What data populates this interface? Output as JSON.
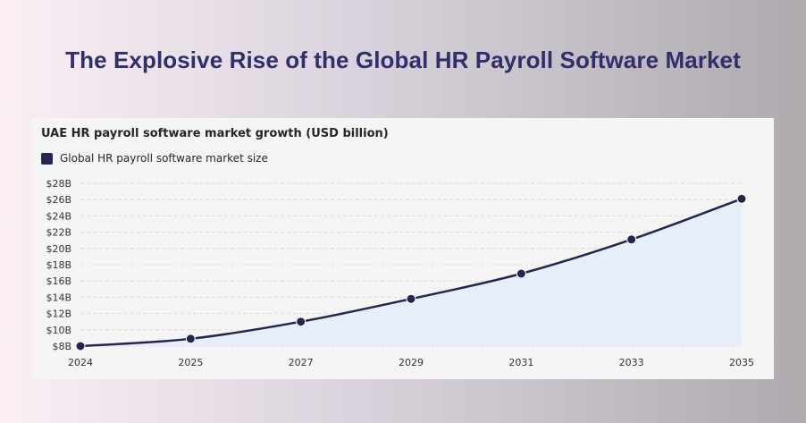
{
  "page": {
    "title": "The Explosive Rise of the Global HR Payroll Software Market"
  },
  "chart_data": {
    "type": "area",
    "title": "UAE HR payroll software market growth (USD billion)",
    "xlabel": "",
    "ylabel": "",
    "x": [
      "2024",
      "2025",
      "2027",
      "2029",
      "2031",
      "2033",
      "2035"
    ],
    "series": [
      {
        "name": "Global HR payroll software market size",
        "values": [
          8.0,
          8.9,
          11.0,
          13.8,
          16.9,
          21.1,
          26.1
        ]
      }
    ],
    "yticks": [
      "$8B",
      "$10B",
      "$12B",
      "$14B",
      "$16B",
      "$18B",
      "$20B",
      "$22B",
      "$24B",
      "$26B",
      "$28B"
    ],
    "ylim": [
      8,
      28
    ],
    "grid": true,
    "legend_position": "top-left",
    "colors": {
      "line": "#24264f",
      "fill": "#e6eef9",
      "marker": "#24264f",
      "grid": "#dddddd"
    }
  }
}
